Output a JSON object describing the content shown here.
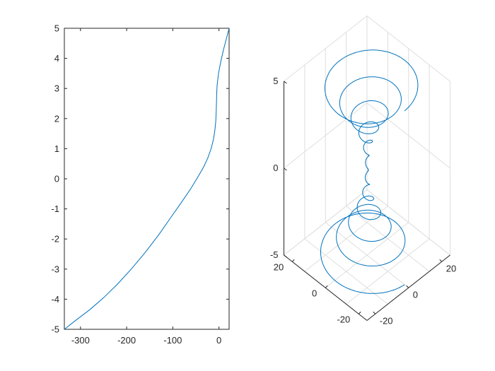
{
  "chart_data": [
    {
      "type": "line",
      "title": "",
      "xlabel": "",
      "ylabel": "",
      "xlim": [
        -335,
        22
      ],
      "ylim": [
        -5,
        5
      ],
      "xticks": [
        -300,
        -200,
        -100,
        0
      ],
      "yticks": [
        -5,
        -4,
        -3,
        -2,
        -1,
        0,
        1,
        2,
        3,
        4,
        5
      ],
      "xtick_labels": [
        "-300",
        "-200",
        "-100",
        "0"
      ],
      "ytick_labels": [
        "-5",
        "-4",
        "-3",
        "-2",
        "-1",
        "0",
        "1",
        "2",
        "3",
        "4",
        "5"
      ],
      "grid": false,
      "series": [
        {
          "color": "#0072bd",
          "x": [
            -335,
            -310,
            -280,
            -250,
            -220,
            -190,
            -160,
            -130,
            -105,
            -82,
            -62,
            -46,
            -33,
            -24,
            -17,
            -12,
            -9,
            -7,
            -6,
            -5.5,
            -5,
            -4,
            -1,
            4,
            10,
            16,
            22
          ],
          "y": [
            -5,
            -4.7,
            -4.35,
            -3.95,
            -3.5,
            -3.0,
            -2.45,
            -1.85,
            -1.3,
            -0.8,
            -0.35,
            0.05,
            0.4,
            0.7,
            1.0,
            1.3,
            1.6,
            1.9,
            2.2,
            2.5,
            2.8,
            3.1,
            3.5,
            3.9,
            4.3,
            4.65,
            5
          ]
        }
      ]
    },
    {
      "type": "line",
      "title": "",
      "projection": "3d",
      "grid": true,
      "xlim": [
        -25,
        25
      ],
      "ylim": [
        -25,
        25
      ],
      "zlim": [
        -5,
        5
      ],
      "zticks": [
        -5,
        0,
        5
      ],
      "ztick_labels": [
        "-5",
        "0",
        "5"
      ],
      "left_axis_ticks": [
        20,
        0,
        -20
      ],
      "left_axis_tick_labels": [
        "20",
        "0",
        "-20"
      ],
      "right_axis_ticks": [
        -20,
        0,
        20
      ],
      "right_axis_tick_labels": [
        "-20",
        "0",
        "20"
      ],
      "series": [
        {
          "color": "#0072bd",
          "description_of_shape": "helix: z from -5 to 5 with radius growing away from z=0",
          "z_range": [
            -5,
            5
          ],
          "turns_per_half": 6,
          "max_radius": 22
        }
      ]
    }
  ]
}
